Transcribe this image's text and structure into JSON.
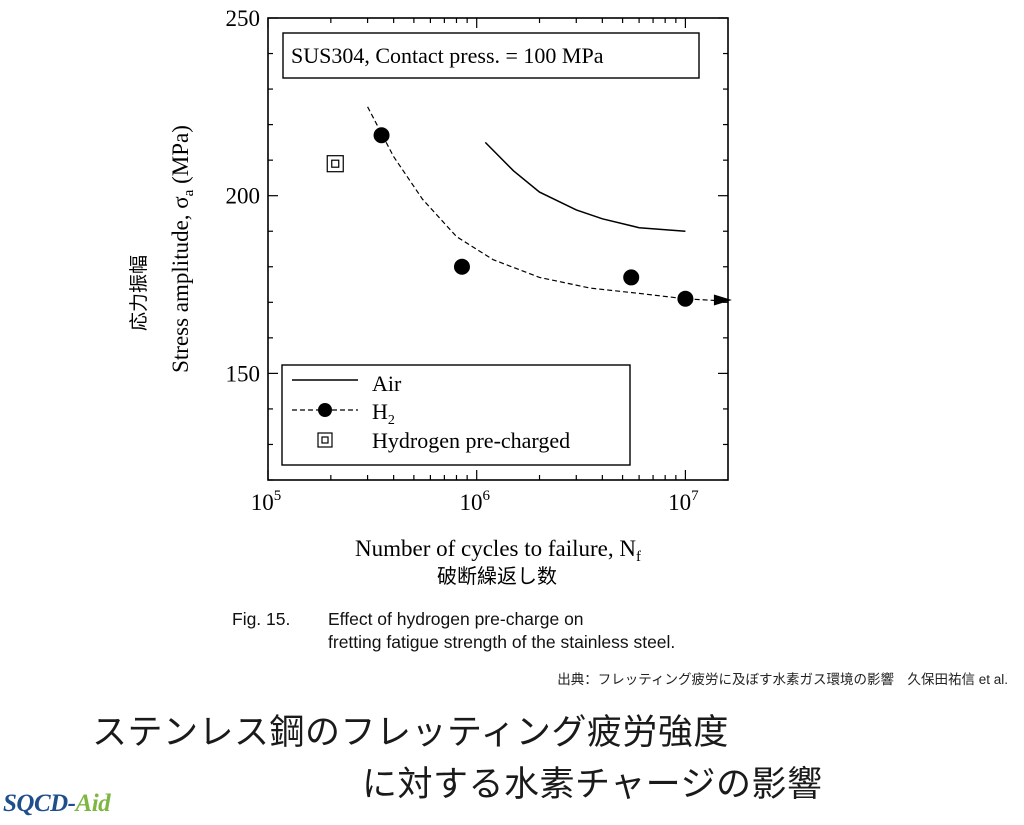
{
  "chart_data": {
    "type": "scatter",
    "annotation": "SUS304,  Contact press. = 100 MPa",
    "ylabel_jp": "応力振幅",
    "ylabel_en": "Stress amplitude,  σ",
    "ylabel_sub": "a",
    "ylabel_unit": "(MPa)",
    "xlabel_en": "Number of cycles to failure,  N",
    "xlabel_sub": "f",
    "xlabel_jp": "破断繰返し数",
    "x_scale": "log",
    "xlim": [
      100000,
      16000000
    ],
    "ylim": [
      120,
      250
    ],
    "y_ticks": [
      150,
      200,
      250
    ],
    "x_ticks": [
      {
        "value": 100000,
        "base": "10",
        "exp": "5"
      },
      {
        "value": 1000000,
        "base": "10",
        "exp": "6"
      },
      {
        "value": 10000000,
        "base": "10",
        "exp": "7"
      }
    ],
    "legend_position": "bottom-left",
    "series": [
      {
        "name": "Air",
        "style": "solid-line",
        "curve": [
          [
            1100000,
            215
          ],
          [
            1500000,
            207
          ],
          [
            2000000,
            201
          ],
          [
            3000000,
            196
          ],
          [
            4000000,
            193.5
          ],
          [
            6000000,
            191
          ],
          [
            10000000,
            190
          ]
        ]
      },
      {
        "name": "H",
        "name_sub": "2",
        "style": "dashed-line-filled-circle",
        "points": [
          [
            350000,
            217
          ],
          [
            850000,
            180
          ],
          [
            5500000,
            177
          ],
          [
            10000000,
            171
          ]
        ],
        "curve": [
          [
            300000,
            225
          ],
          [
            400000,
            211
          ],
          [
            550000,
            199
          ],
          [
            800000,
            188.5
          ],
          [
            1200000,
            182
          ],
          [
            2000000,
            177
          ],
          [
            3500000,
            174
          ],
          [
            6000000,
            172.5
          ],
          [
            10000000,
            171
          ],
          [
            14000000,
            170.5
          ]
        ],
        "runout": [
          10000000,
          171
        ]
      },
      {
        "name": "Hydrogen pre-charged",
        "style": "double-square",
        "points": [
          [
            210000,
            209
          ]
        ]
      }
    ]
  },
  "caption": {
    "fig_num": "Fig. 15.",
    "line1": "Effect of hydrogen pre-charge on",
    "line2": "fretting fatigue strength of the stainless steel."
  },
  "source": "出典：フレッティング疲労に及ぼす水素ガス環境の影響　久保田祐信 et al.",
  "title_line1": "ステンレス鋼のフレッティング疲労強度",
  "title_line2": "に対する水素チャージの影響",
  "logo_part1": "SQCD-",
  "logo_part2": "Aid",
  "colors": {
    "logo_blue": "#1f4e8c",
    "logo_green": "#7fb543"
  }
}
